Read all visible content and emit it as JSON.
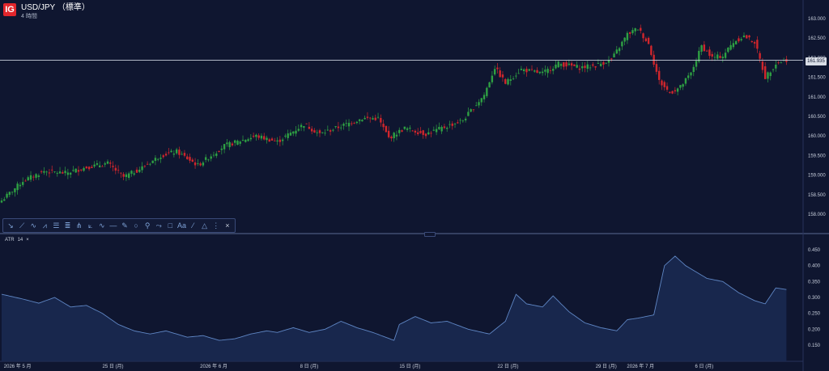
{
  "header": {
    "logo": "IG",
    "symbol": "USD/JPY （標準）",
    "timeframe": "4 時間"
  },
  "indicator": {
    "name": "ATR",
    "period": "14",
    "close_glyph": "×"
  },
  "current_price_label": "161.935",
  "toolbar_tools": [
    "trend-arrow",
    "ray",
    "trend-line",
    "multi-line",
    "fib-retracement",
    "fib-levels",
    "pitchfork",
    "brush",
    "zigzag",
    "horizontal-line",
    "pencil",
    "circle",
    "measure",
    "path",
    "rectangle",
    "text",
    "line",
    "triangle",
    "vertical-line",
    "close"
  ],
  "colors": {
    "background": "#0f1630",
    "up_candle": "#2ea043",
    "down_candle": "#d0262c",
    "atr_line": "#5f86c4",
    "atr_fill": "#1a2a52",
    "grid_line": "#c8cfdc",
    "accent": "#e1262c"
  },
  "chart_data": [
    {
      "type": "candlestick",
      "title": "USD/JPY （標準）",
      "xlabel": "",
      "ylabel": "",
      "ylim": [
        157.75,
        163.25
      ],
      "y_ticks": [
        "163.000",
        "162.500",
        "162.000",
        "161.500",
        "161.000",
        "160.500",
        "160.000",
        "159.500",
        "159.000",
        "158.500",
        "158.000"
      ],
      "current_price": 161.935,
      "x_tick_labels": [
        {
          "label": "2026 年 5 月",
          "bar": 6
        },
        {
          "label": "25 日 (月)",
          "bar": 42
        },
        {
          "label": "2026 年 6 月",
          "bar": 80
        },
        {
          "label": "8 日 (月)",
          "bar": 116
        },
        {
          "label": "15 日 (月)",
          "bar": 154
        },
        {
          "label": "22 日 (月)",
          "bar": 191
        },
        {
          "label": "29 日 (月)",
          "bar": 228
        },
        {
          "label": "2026 年 7 月",
          "bar": 241
        },
        {
          "label": "6 日 (月)",
          "bar": 265
        }
      ],
      "close_anchors": [
        [
          0,
          158.35
        ],
        [
          8,
          158.85
        ],
        [
          16,
          159.1
        ],
        [
          24,
          159.05
        ],
        [
          32,
          159.2
        ],
        [
          40,
          159.3
        ],
        [
          46,
          158.95
        ],
        [
          52,
          159.15
        ],
        [
          60,
          159.5
        ],
        [
          66,
          159.6
        ],
        [
          74,
          159.25
        ],
        [
          84,
          159.75
        ],
        [
          96,
          160.0
        ],
        [
          104,
          159.85
        ],
        [
          114,
          160.3
        ],
        [
          120,
          160.05
        ],
        [
          128,
          160.25
        ],
        [
          136,
          160.45
        ],
        [
          142,
          160.45
        ],
        [
          146,
          159.95
        ],
        [
          152,
          160.2
        ],
        [
          160,
          160.05
        ],
        [
          166,
          160.2
        ],
        [
          174,
          160.4
        ],
        [
          182,
          161.05
        ],
        [
          186,
          161.75
        ],
        [
          190,
          161.35
        ],
        [
          196,
          161.7
        ],
        [
          204,
          161.6
        ],
        [
          210,
          161.85
        ],
        [
          218,
          161.75
        ],
        [
          224,
          161.8
        ],
        [
          230,
          161.95
        ],
        [
          236,
          162.6
        ],
        [
          240,
          162.75
        ],
        [
          244,
          162.35
        ],
        [
          248,
          161.4
        ],
        [
          252,
          161.1
        ],
        [
          256,
          161.25
        ],
        [
          260,
          161.6
        ],
        [
          264,
          162.3
        ],
        [
          268,
          162.0
        ],
        [
          272,
          162.05
        ],
        [
          276,
          162.4
        ],
        [
          280,
          162.55
        ],
        [
          284,
          162.4
        ],
        [
          288,
          161.5
        ],
        [
          292,
          161.85
        ],
        [
          296,
          161.95
        ]
      ],
      "last_bar": 296
    },
    {
      "type": "line",
      "title": "ATR 14",
      "xlabel": "",
      "ylabel": "",
      "ylim": [
        0.12,
        0.475
      ],
      "y_ticks": [
        "0.450",
        "0.400",
        "0.350",
        "0.300",
        "0.250",
        "0.200",
        "0.150"
      ],
      "values_anchors": [
        [
          0,
          0.31
        ],
        [
          8,
          0.295
        ],
        [
          14,
          0.282
        ],
        [
          20,
          0.3
        ],
        [
          26,
          0.27
        ],
        [
          32,
          0.275
        ],
        [
          38,
          0.25
        ],
        [
          44,
          0.215
        ],
        [
          50,
          0.195
        ],
        [
          56,
          0.185
        ],
        [
          62,
          0.195
        ],
        [
          70,
          0.175
        ],
        [
          76,
          0.18
        ],
        [
          82,
          0.165
        ],
        [
          88,
          0.17
        ],
        [
          94,
          0.185
        ],
        [
          100,
          0.195
        ],
        [
          104,
          0.19
        ],
        [
          110,
          0.205
        ],
        [
          116,
          0.19
        ],
        [
          122,
          0.2
        ],
        [
          128,
          0.225
        ],
        [
          134,
          0.205
        ],
        [
          140,
          0.19
        ],
        [
          148,
          0.165
        ],
        [
          150,
          0.215
        ],
        [
          156,
          0.24
        ],
        [
          162,
          0.22
        ],
        [
          168,
          0.225
        ],
        [
          176,
          0.2
        ],
        [
          184,
          0.185
        ],
        [
          190,
          0.225
        ],
        [
          194,
          0.31
        ],
        [
          198,
          0.28
        ],
        [
          204,
          0.27
        ],
        [
          208,
          0.305
        ],
        [
          214,
          0.255
        ],
        [
          220,
          0.22
        ],
        [
          226,
          0.205
        ],
        [
          232,
          0.195
        ],
        [
          236,
          0.23
        ],
        [
          240,
          0.235
        ],
        [
          246,
          0.245
        ],
        [
          250,
          0.4
        ],
        [
          254,
          0.43
        ],
        [
          258,
          0.4
        ],
        [
          262,
          0.38
        ],
        [
          266,
          0.36
        ],
        [
          272,
          0.35
        ],
        [
          278,
          0.315
        ],
        [
          284,
          0.29
        ],
        [
          288,
          0.28
        ],
        [
          292,
          0.33
        ],
        [
          296,
          0.325
        ]
      ]
    }
  ]
}
